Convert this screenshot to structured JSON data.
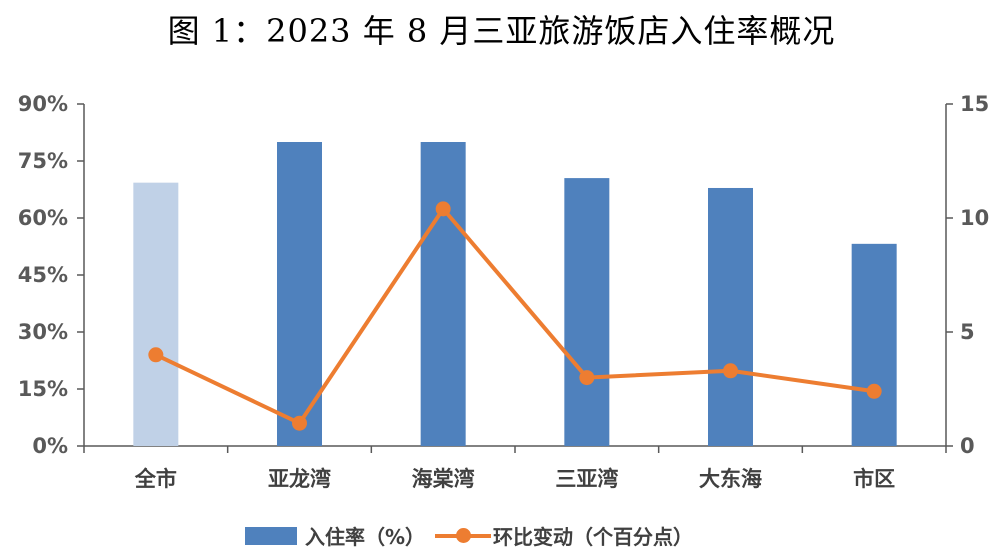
{
  "title": "图 1：2023 年 8 月三亚旅游饭店入住率概况",
  "legend": {
    "bar_label": "入住率（%）",
    "line_label": "环比变动（个百分点）"
  },
  "axes": {
    "left_ticks": [
      "90%",
      "75%",
      "60%",
      "45%",
      "30%",
      "15%",
      "0%"
    ],
    "right_ticks": [
      "15",
      "10",
      "5",
      "0"
    ]
  },
  "colors": {
    "bar": "#4f81bd",
    "bar_highlight": "#c0d1e7",
    "line": "#ed7d31",
    "axis": "#595959"
  },
  "chart_data": {
    "type": "bar+line",
    "title": "图 1：2023 年 8 月三亚旅游饭店入住率概况",
    "categories": [
      "全市",
      "亚龙湾",
      "海棠湾",
      "三亚湾",
      "大东海",
      "市区"
    ],
    "series": [
      {
        "name": "入住率（%）",
        "type": "bar",
        "axis": "left",
        "values": [
          69.3,
          80.0,
          80.0,
          70.5,
          67.9,
          53.2
        ]
      },
      {
        "name": "环比变动（个百分点）",
        "type": "line",
        "axis": "right",
        "values": [
          4.0,
          1.0,
          10.4,
          3.0,
          3.3,
          2.4
        ]
      }
    ],
    "xlabel": "",
    "ylabel_left": "",
    "ylabel_right": "",
    "ylim_left": [
      0,
      90
    ],
    "ylim_right": [
      0,
      15
    ],
    "left_tick_step": 15,
    "right_tick_step": 5,
    "grid": false,
    "legend_position": "bottom"
  }
}
